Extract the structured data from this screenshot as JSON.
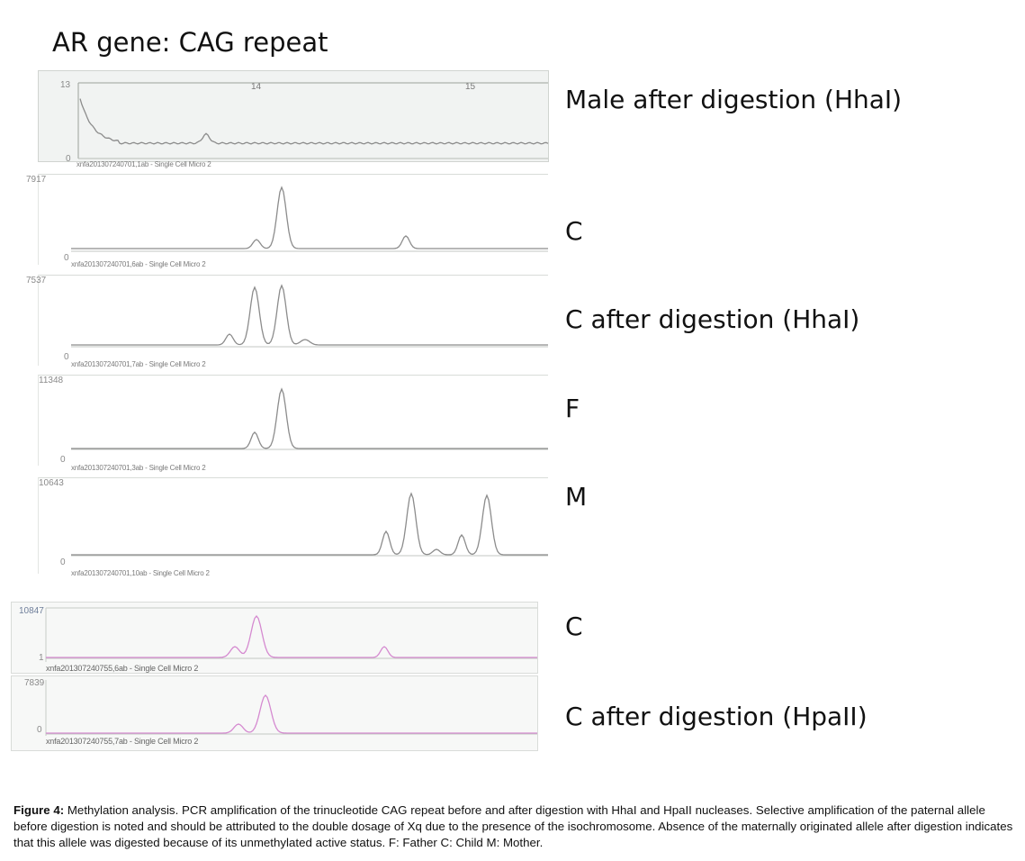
{
  "title": "AR gene: CAG repeat",
  "x_ticks": [
    "14",
    "15"
  ],
  "panels": [
    {
      "label": "Male after digestion (HhaI)",
      "ymax": "13",
      "ymin": "0",
      "plabel": "xnfa201307240701,1ab - Single Cell Micro 2",
      "color": "#8c8c8c"
    },
    {
      "label": "C",
      "ymax": "7917",
      "ymin": "0",
      "plabel": "xnfa201307240701,6ab - Single Cell Micro 2",
      "color": "#8c8c8c"
    },
    {
      "label": "C after digestion (HhaI)",
      "ymax": "7537",
      "ymin": "0",
      "plabel": "xnfa201307240701,7ab - Single Cell Micro 2",
      "color": "#8c8c8c"
    },
    {
      "label": "F",
      "ymax": "11348",
      "ymin": "0",
      "plabel": "xnfa201307240701,3ab - Single Cell Micro 2",
      "color": "#8c8c8c"
    },
    {
      "label": "M",
      "ymax": "10643",
      "ymin": "0",
      "plabel": "xnfa201307240701,10ab - Single Cell Micro 2",
      "color": "#8c8c8c"
    },
    {
      "label": "C",
      "ymax": "10847",
      "ymin": "1",
      "plabel": "xnfa201307240755,6ab - Single Cell Micro 2",
      "color": "#d58ad0"
    },
    {
      "label": "C after digestion  (HpaII)",
      "ymax": "7839",
      "ymin": "0",
      "plabel": "xnfa201307240755,7ab - Single Cell Micro 2",
      "color": "#d58ad0"
    }
  ],
  "caption": {
    "figure_label": "Figure 4:",
    "text": " Methylation analysis. PCR amplification of the trinucleotide CAG repeat before and after digestion with HhaI and HpaII nucleases. Selective amplification of the paternal allele before digestion is noted and should be attributed to the double dosage of Xq due to the presence of the isochromosome. Absence of the maternally originated allele after digestion indicates that this allele was digested because of its unmethylated active status. F: Father  C: Child  M: Mother."
  }
}
